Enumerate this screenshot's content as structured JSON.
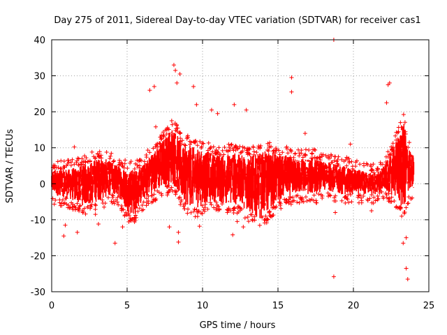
{
  "chart_data": {
    "type": "scatter",
    "title": "Day 275 of 2011, Sidereal Day-to-day VTEC variation (SDTVAR) for receiver cas1",
    "xlabel": "GPS time / hours",
    "ylabel": "SDTVAR / TECUs",
    "xlim": [
      0,
      25
    ],
    "ylim": [
      -30,
      40
    ],
    "xticks": [
      0,
      5,
      10,
      15,
      20,
      25
    ],
    "yticks": [
      -30,
      -20,
      -10,
      0,
      10,
      20,
      30,
      40
    ],
    "grid": true,
    "marker": "+",
    "series_color": "#ff0000",
    "band": {
      "x": [
        0.0,
        1.0,
        2.0,
        2.5,
        3.0,
        3.5,
        4.0,
        4.5,
        5.0,
        5.5,
        6.0,
        6.5,
        7.0,
        7.5,
        8.0,
        8.3,
        8.7,
        9.0,
        9.5,
        10.0,
        10.5,
        11.0,
        11.5,
        12.0,
        12.5,
        13.0,
        13.5,
        14.0,
        14.5,
        15.0,
        15.5,
        16.0,
        16.5,
        17.0,
        17.5,
        18.0,
        18.5,
        19.0,
        19.5,
        20.0,
        20.5,
        21.0,
        21.5,
        22.0,
        22.5,
        23.0,
        23.3,
        23.6,
        24.0
      ],
      "upper": [
        4,
        4,
        5,
        6,
        7,
        7,
        6,
        5,
        4,
        4,
        5,
        8,
        10,
        13,
        16,
        14,
        10,
        11,
        10,
        9,
        9,
        8,
        8,
        9,
        8,
        8,
        8,
        9,
        9,
        8,
        8,
        7,
        7,
        7,
        7,
        6,
        6,
        5,
        5,
        4,
        4,
        3,
        3,
        5,
        8,
        14,
        18,
        10,
        8
      ],
      "lower": [
        -3,
        -4,
        -6,
        -6,
        -5,
        -4,
        -3,
        -4,
        -8,
        -9,
        -5,
        -3,
        -2,
        -1,
        0,
        -2,
        -5,
        -6,
        -7,
        -6,
        -5,
        -5,
        -6,
        -6,
        -6,
        -8,
        -9,
        -10,
        -7,
        -5,
        -4,
        -3,
        -3,
        -3,
        -3,
        -2,
        -2,
        -3,
        -3,
        -3,
        -3,
        -3,
        -3,
        -2,
        -3,
        -5,
        -8,
        -3,
        -2
      ]
    },
    "outliers": [
      {
        "x": 0.8,
        "y": -14.5
      },
      {
        "x": 0.9,
        "y": -11.5
      },
      {
        "x": 1.5,
        "y": 10.2
      },
      {
        "x": 1.7,
        "y": -13.5
      },
      {
        "x": 2.9,
        "y": -8.5
      },
      {
        "x": 3.1,
        "y": -11.2
      },
      {
        "x": 4.2,
        "y": -16.5
      },
      {
        "x": 4.7,
        "y": -12.0
      },
      {
        "x": 6.5,
        "y": 26.0
      },
      {
        "x": 6.8,
        "y": 27.0
      },
      {
        "x": 6.9,
        "y": 15.8
      },
      {
        "x": 7.8,
        "y": -12.0
      },
      {
        "x": 8.1,
        "y": 33.0
      },
      {
        "x": 8.2,
        "y": 31.5
      },
      {
        "x": 8.3,
        "y": 28.0
      },
      {
        "x": 8.5,
        "y": 30.5
      },
      {
        "x": 8.4,
        "y": -13.5
      },
      {
        "x": 8.4,
        "y": -16.2
      },
      {
        "x": 9.4,
        "y": 27.0
      },
      {
        "x": 9.6,
        "y": 22.0
      },
      {
        "x": 9.8,
        "y": -11.8
      },
      {
        "x": 10.6,
        "y": 20.5
      },
      {
        "x": 11.0,
        "y": 19.5
      },
      {
        "x": 12.0,
        "y": -14.2
      },
      {
        "x": 12.1,
        "y": 22.0
      },
      {
        "x": 12.3,
        "y": -10.5
      },
      {
        "x": 12.9,
        "y": 20.5
      },
      {
        "x": 12.7,
        "y": -12.0
      },
      {
        "x": 15.9,
        "y": 29.5
      },
      {
        "x": 15.9,
        "y": 25.5
      },
      {
        "x": 16.8,
        "y": 14.0
      },
      {
        "x": 18.7,
        "y": 40.0
      },
      {
        "x": 18.7,
        "y": -25.8
      },
      {
        "x": 18.8,
        "y": -8.0
      },
      {
        "x": 19.8,
        "y": 11.0
      },
      {
        "x": 22.3,
        "y": 27.5
      },
      {
        "x": 22.4,
        "y": 28.0
      },
      {
        "x": 22.2,
        "y": 22.5
      },
      {
        "x": 23.3,
        "y": -16.5
      },
      {
        "x": 23.5,
        "y": -15.0
      },
      {
        "x": 23.5,
        "y": -23.5
      },
      {
        "x": 23.6,
        "y": -26.5
      },
      {
        "x": 23.2,
        "y": -9.0
      },
      {
        "x": 21.2,
        "y": -7.5
      }
    ]
  }
}
